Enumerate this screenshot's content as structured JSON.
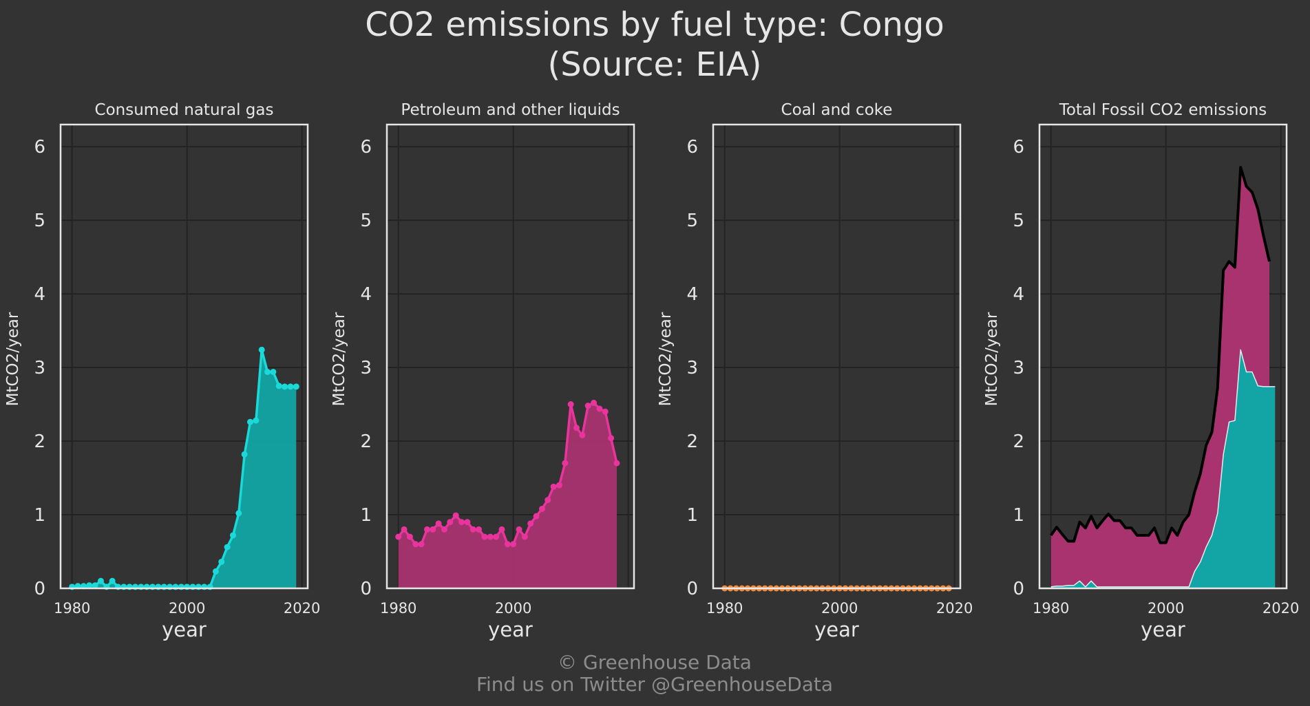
{
  "header": {
    "title_line1": "CO2 emissions by fuel type: Congo",
    "title_line2": "(Source: EIA)"
  },
  "footer": {
    "copyright": "© Greenhouse Data",
    "twitter": "Find us on Twitter @GreenhouseData"
  },
  "colors": {
    "background": "#333333",
    "gas": "#1ad9d9",
    "gas_fill": "#13a5a5",
    "petroleum": "#e8349c",
    "petroleum_fill": "#a8336f",
    "coal": "#f08a3c",
    "total_line": "#000000",
    "grid": "#232323",
    "frame": "#e6e6e6"
  },
  "chart_data": [
    {
      "type": "area",
      "title": "Consumed natural gas",
      "xlabel": "year",
      "ylabel": "MtCO2/year",
      "xlim": [
        1978,
        2021
      ],
      "ylim": [
        0,
        6.3
      ],
      "xticks": [
        "1980",
        "2000",
        "2020"
      ],
      "yticks": [
        "0",
        "1",
        "2",
        "3",
        "4",
        "5",
        "6"
      ],
      "markers": true,
      "series": [
        {
          "name": "Consumed natural gas",
          "color_key": "gas",
          "x": [
            1980,
            1981,
            1982,
            1983,
            1984,
            1985,
            1986,
            1987,
            1988,
            1989,
            1990,
            1991,
            1992,
            1993,
            1994,
            1995,
            1996,
            1997,
            1998,
            1999,
            2000,
            2001,
            2002,
            2003,
            2004,
            2005,
            2006,
            2007,
            2008,
            2009,
            2010,
            2011,
            2012,
            2013,
            2014,
            2015,
            2016,
            2017,
            2018,
            2019
          ],
          "values": [
            0.02,
            0.03,
            0.03,
            0.04,
            0.04,
            0.1,
            0.02,
            0.1,
            0.02,
            0.02,
            0.02,
            0.02,
            0.02,
            0.02,
            0.02,
            0.02,
            0.02,
            0.02,
            0.02,
            0.02,
            0.02,
            0.02,
            0.02,
            0.02,
            0.02,
            0.23,
            0.36,
            0.56,
            0.72,
            1.02,
            1.82,
            2.26,
            2.28,
            3.24,
            2.94,
            2.94,
            2.75,
            2.74,
            2.74,
            2.74
          ]
        }
      ]
    },
    {
      "type": "area",
      "title": "Petroleum and other liquids",
      "xlabel": "year",
      "ylabel": "MtCO2/year",
      "xlim": [
        1978,
        2021
      ],
      "ylim": [
        0,
        6.3
      ],
      "xticks": [
        "1980",
        "2000"
      ],
      "yticks": [
        "0",
        "1",
        "2",
        "3",
        "4",
        "5",
        "6"
      ],
      "markers": true,
      "series": [
        {
          "name": "Petroleum and other liquids",
          "color_key": "petroleum",
          "x": [
            1980,
            1981,
            1982,
            1983,
            1984,
            1985,
            1986,
            1987,
            1988,
            1989,
            1990,
            1991,
            1992,
            1993,
            1994,
            1995,
            1996,
            1997,
            1998,
            1999,
            2000,
            2001,
            2002,
            2003,
            2004,
            2005,
            2006,
            2007,
            2008,
            2009,
            2010,
            2011,
            2012,
            2013,
            2014,
            2015,
            2016,
            2017,
            2018
          ],
          "values": [
            0.7,
            0.8,
            0.7,
            0.6,
            0.6,
            0.8,
            0.8,
            0.88,
            0.8,
            0.9,
            0.99,
            0.9,
            0.9,
            0.8,
            0.8,
            0.7,
            0.7,
            0.7,
            0.8,
            0.6,
            0.6,
            0.8,
            0.7,
            0.88,
            0.98,
            1.08,
            1.2,
            1.38,
            1.4,
            1.7,
            2.5,
            2.18,
            2.08,
            2.48,
            2.52,
            2.44,
            2.4,
            2.04,
            1.7
          ]
        }
      ]
    },
    {
      "type": "area",
      "title": "Coal and coke",
      "xlabel": "year",
      "ylabel": "MtCO2/year",
      "xlim": [
        1978,
        2021
      ],
      "ylim": [
        0,
        6.3
      ],
      "xticks": [
        "1980",
        "2000",
        "2020"
      ],
      "yticks": [
        "0",
        "1",
        "2",
        "3",
        "4",
        "5",
        "6"
      ],
      "markers": true,
      "series": [
        {
          "name": "Coal and coke",
          "color_key": "coal",
          "x": [
            1980,
            1981,
            1982,
            1983,
            1984,
            1985,
            1986,
            1987,
            1988,
            1989,
            1990,
            1991,
            1992,
            1993,
            1994,
            1995,
            1996,
            1997,
            1998,
            1999,
            2000,
            2001,
            2002,
            2003,
            2004,
            2005,
            2006,
            2007,
            2008,
            2009,
            2010,
            2011,
            2012,
            2013,
            2014,
            2015,
            2016,
            2017,
            2018,
            2019
          ],
          "values": [
            0,
            0,
            0,
            0,
            0,
            0,
            0,
            0,
            0,
            0,
            0,
            0,
            0,
            0,
            0,
            0,
            0,
            0,
            0,
            0,
            0,
            0,
            0,
            0,
            0,
            0,
            0,
            0,
            0,
            0,
            0,
            0,
            0,
            0,
            0,
            0,
            0,
            0,
            0,
            0
          ]
        }
      ]
    },
    {
      "type": "area",
      "stacked": true,
      "title": "Total Fossil CO2 emissions",
      "xlabel": "year",
      "ylabel": "MtCO2/year",
      "xlim": [
        1978,
        2021
      ],
      "ylim": [
        0,
        6.3
      ],
      "xticks": [
        "1980",
        "2000",
        "2020"
      ],
      "yticks": [
        "0",
        "1",
        "2",
        "3",
        "4",
        "5",
        "6"
      ],
      "markers": false,
      "series": [
        {
          "name": "Consumed natural gas",
          "color_key": "gas",
          "x": [
            1980,
            1981,
            1982,
            1983,
            1984,
            1985,
            1986,
            1987,
            1988,
            1989,
            1990,
            1991,
            1992,
            1993,
            1994,
            1995,
            1996,
            1997,
            1998,
            1999,
            2000,
            2001,
            2002,
            2003,
            2004,
            2005,
            2006,
            2007,
            2008,
            2009,
            2010,
            2011,
            2012,
            2013,
            2014,
            2015,
            2016,
            2017,
            2018,
            2019
          ],
          "values": [
            0.02,
            0.03,
            0.03,
            0.04,
            0.04,
            0.1,
            0.02,
            0.1,
            0.02,
            0.02,
            0.02,
            0.02,
            0.02,
            0.02,
            0.02,
            0.02,
            0.02,
            0.02,
            0.02,
            0.02,
            0.02,
            0.02,
            0.02,
            0.02,
            0.02,
            0.23,
            0.36,
            0.56,
            0.72,
            1.02,
            1.82,
            2.26,
            2.28,
            3.24,
            2.94,
            2.94,
            2.75,
            2.74,
            2.74,
            2.74
          ]
        },
        {
          "name": "Petroleum and other liquids",
          "color_key": "petroleum",
          "x": [
            1980,
            1981,
            1982,
            1983,
            1984,
            1985,
            1986,
            1987,
            1988,
            1989,
            1990,
            1991,
            1992,
            1993,
            1994,
            1995,
            1996,
            1997,
            1998,
            1999,
            2000,
            2001,
            2002,
            2003,
            2004,
            2005,
            2006,
            2007,
            2008,
            2009,
            2010,
            2011,
            2012,
            2013,
            2014,
            2015,
            2016,
            2017,
            2018
          ],
          "values": [
            0.7,
            0.8,
            0.7,
            0.6,
            0.6,
            0.8,
            0.8,
            0.88,
            0.8,
            0.9,
            0.99,
            0.9,
            0.9,
            0.8,
            0.8,
            0.7,
            0.7,
            0.7,
            0.8,
            0.6,
            0.6,
            0.8,
            0.7,
            0.88,
            0.98,
            1.08,
            1.2,
            1.38,
            1.4,
            1.7,
            2.5,
            2.18,
            2.08,
            2.48,
            2.52,
            2.44,
            2.4,
            2.04,
            1.7
          ]
        }
      ],
      "total": {
        "name": "Total",
        "color_key": "total_line",
        "x": [
          1980,
          1981,
          1982,
          1983,
          1984,
          1985,
          1986,
          1987,
          1988,
          1989,
          1990,
          1991,
          1992,
          1993,
          1994,
          1995,
          1996,
          1997,
          1998,
          1999,
          2000,
          2001,
          2002,
          2003,
          2004,
          2005,
          2006,
          2007,
          2008,
          2009,
          2010,
          2011,
          2012,
          2013,
          2014,
          2015,
          2016,
          2017,
          2018
        ],
        "values": [
          0.72,
          0.83,
          0.73,
          0.64,
          0.64,
          0.9,
          0.82,
          0.98,
          0.82,
          0.92,
          1.01,
          0.92,
          0.92,
          0.82,
          0.82,
          0.72,
          0.72,
          0.72,
          0.82,
          0.62,
          0.62,
          0.82,
          0.72,
          0.9,
          1.0,
          1.31,
          1.56,
          1.94,
          2.12,
          2.72,
          4.32,
          4.44,
          4.36,
          5.72,
          5.46,
          5.38,
          5.15,
          4.78,
          4.44
        ]
      }
    }
  ]
}
